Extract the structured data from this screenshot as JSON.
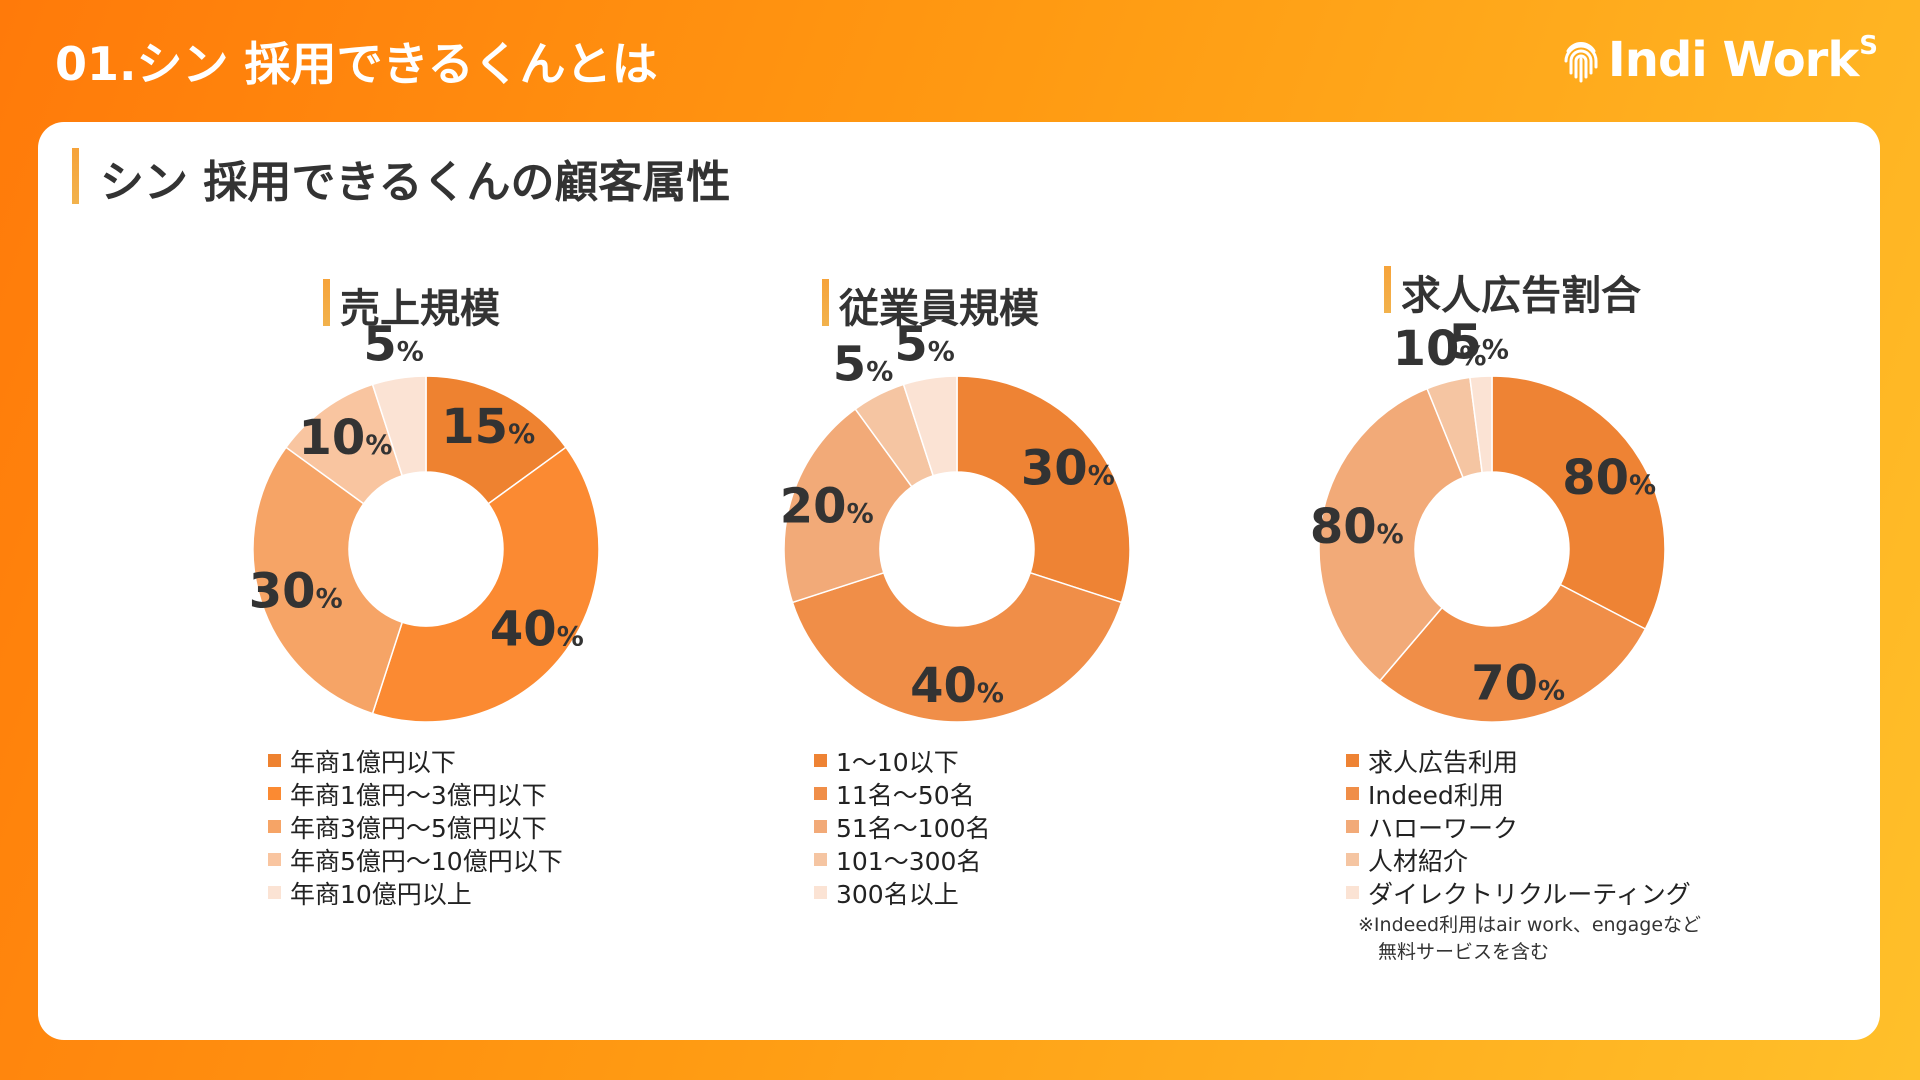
{
  "header": {
    "title": "01.シン 採用できるくんとは",
    "logo": "Indi Work",
    "logo_sup": "S"
  },
  "section_title": "シン 採用できるくんの顧客属性",
  "percent_sign": "%",
  "chart_data": [
    {
      "type": "pie",
      "title": "売上規模",
      "categories": [
        "年商1億円以下",
        "年商1億円〜3億円以下",
        "年商3億円〜5億円以下",
        "年商5億円〜10億円以下",
        "年商10億円以上"
      ],
      "values": [
        15,
        40,
        30,
        10,
        5
      ],
      "colors": [
        "#ee8230",
        "#fb8a32",
        "#f6a466",
        "#f9c5a0",
        "#fbe3d4"
      ],
      "legend": "bottom"
    },
    {
      "type": "pie",
      "title": "従業員規模",
      "categories": [
        "1〜10以下",
        "11名〜50名",
        "51名〜100名",
        "101〜300名",
        "300名以上"
      ],
      "values": [
        30,
        40,
        20,
        5,
        5
      ],
      "colors": [
        "#ee8334",
        "#f08e48",
        "#f2aa78",
        "#f5c5a2",
        "#fbe3d4"
      ],
      "legend": "bottom"
    },
    {
      "type": "pie",
      "title": "求人広告割合",
      "categories": [
        "求人広告利用",
        "Indeed利用",
        "ハローワーク",
        "人材紹介",
        "ダイレクトリクルーティング"
      ],
      "values": [
        80,
        70,
        80,
        10,
        5
      ],
      "colors": [
        "#ee8334",
        "#f08e48",
        "#f2aa78",
        "#f5c5a2",
        "#fbe3d4"
      ],
      "legend": "bottom"
    }
  ],
  "note": {
    "line1": "※Indeed利用はair work、engageなど",
    "line2": "無料サービスを含む"
  }
}
